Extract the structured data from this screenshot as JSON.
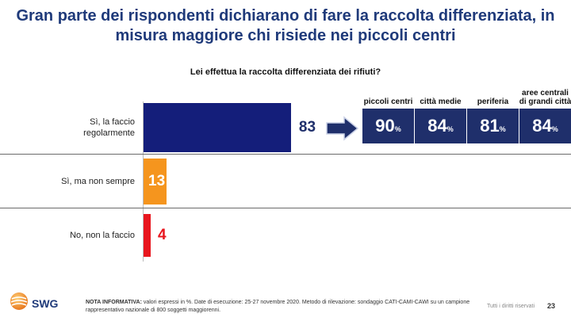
{
  "slide": {
    "title_line1": "Gran parte dei rispondenti dichiarano di fare la raccolta differenziata, in",
    "title_line2": "misura maggiore chi risiede nei piccoli centri"
  },
  "chart_data": {
    "type": "bar",
    "title": "Lei effettua la raccolta differenziata dei rifiuti?",
    "categories": [
      "Sì, la faccio regolarmente",
      "Sì, ma non sempre",
      "No, non la faccio"
    ],
    "category_lines": [
      [
        "Sì, la faccio",
        "regolarmente"
      ],
      [
        "Sì, ma non sempre"
      ],
      [
        "No, non la faccio"
      ]
    ],
    "values": [
      83,
      13,
      4
    ],
    "value_labels": [
      "83",
      "13",
      "4"
    ],
    "colors": [
      "#141e7a",
      "#f5951e",
      "#e8161e"
    ],
    "value_colors": [
      "#1f2f6b",
      "#ffffff",
      "#e8161e"
    ],
    "xlim": [
      0,
      100
    ],
    "breakdown": {
      "category": "Sì, la faccio regolarmente",
      "headers": [
        [
          "piccoli centri"
        ],
        [
          "città medie"
        ],
        [
          "periferia"
        ],
        [
          "aree centrali",
          "di grandi città"
        ]
      ],
      "values": [
        90,
        84,
        81,
        84
      ],
      "value_labels": [
        "90",
        "84",
        "81",
        "84"
      ],
      "unit": "%"
    }
  },
  "footer": {
    "logo_text": "SWG",
    "note_label": "NOTA INFORMATIVA:",
    "note_text": " valori espressi in %. Date di esecuzione: 25-27 novembre 2020. Metodo di rilevazione: sondaggio CATI-CAMI-CAWI su un campione rappresentativo nazionale di 800 soggetti maggiorenni.",
    "rights": "Tutti i diritti riservati",
    "page": "23"
  },
  "colors": {
    "title": "#1f3a7a",
    "dark_blue": "#1f2f6b",
    "bar_blue": "#141e7a",
    "orange": "#f5951e",
    "red": "#e8161e"
  }
}
